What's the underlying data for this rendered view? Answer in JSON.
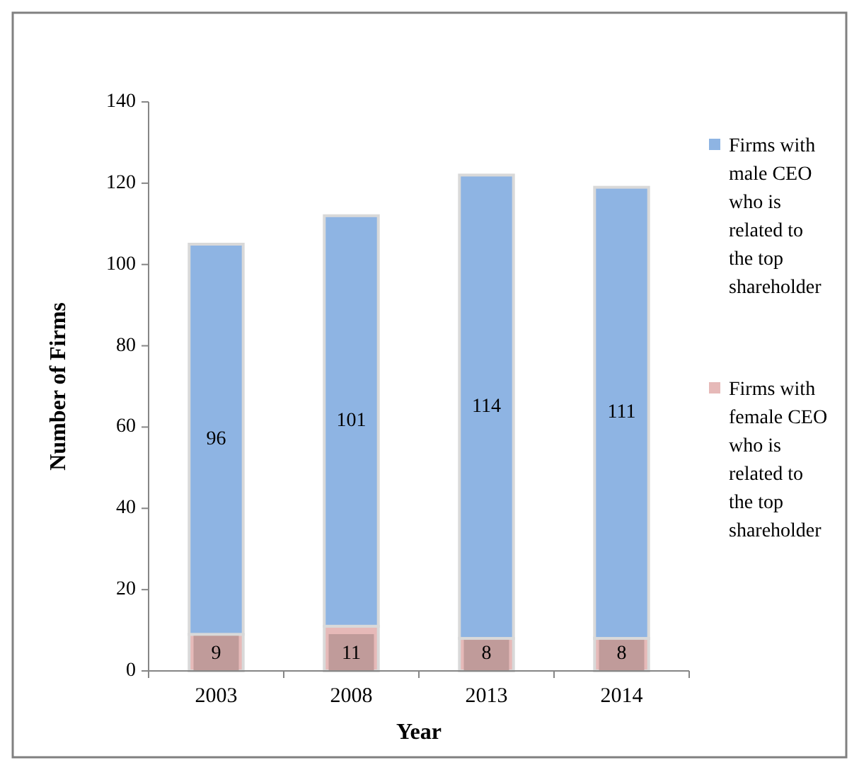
{
  "chart_data": {
    "type": "bar",
    "stacked": true,
    "xlabel": "Year",
    "ylabel": "Number of Firms",
    "categories": [
      "2003",
      "2008",
      "2013",
      "2014"
    ],
    "series": [
      {
        "name": "Firms with female CEO who is related to the top shareholder",
        "color": "#e6b9b8",
        "values": [
          9,
          11,
          8,
          8
        ]
      },
      {
        "name": "Firms with male CEO who is related to the top shareholder",
        "color": "#8eb4e3",
        "values": [
          96,
          101,
          114,
          111
        ]
      }
    ],
    "ylim": [
      0,
      140
    ],
    "yticks": [
      0,
      20,
      40,
      60,
      80,
      100,
      120,
      140
    ],
    "data_labels": true,
    "legend": "right"
  }
}
